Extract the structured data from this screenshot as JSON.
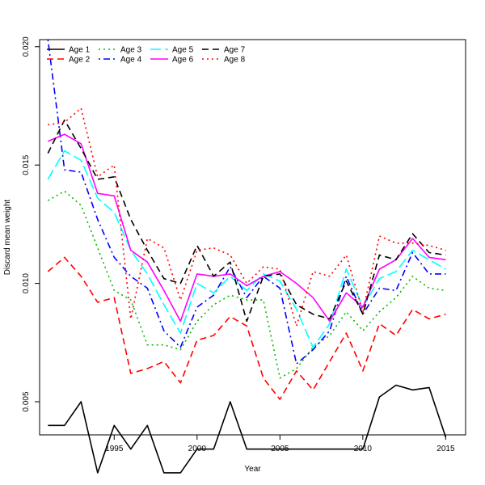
{
  "chart_data": {
    "type": "line",
    "title": "",
    "xlabel": "Year",
    "ylabel": "Discard mean weight",
    "xlim": [
      1990.5,
      2016.2
    ],
    "ylim": [
      0.0036,
      0.0203
    ],
    "x_ticks": [
      1995,
      2000,
      2005,
      2010,
      2015
    ],
    "x_tick_labels": [
      "1995",
      "2000",
      "2005",
      "2010",
      "2015"
    ],
    "y_ticks": [
      0.005,
      0.01,
      0.015,
      0.02
    ],
    "y_tick_labels": [
      "0.005",
      "0.010",
      "0.015",
      "0.020"
    ],
    "grid": false,
    "legend_position": "top-left",
    "x": [
      1991,
      1992,
      1993,
      1994,
      1995,
      1996,
      1997,
      1998,
      1999,
      2000,
      2001,
      2002,
      2003,
      2004,
      2005,
      2006,
      2007,
      2008,
      2009,
      2010,
      2011,
      2012,
      2013,
      2014,
      2015
    ],
    "series": [
      {
        "name": "Age 1",
        "color": "#000000",
        "dash": "solid",
        "values": [
          0.004,
          0.004,
          0.005,
          0.002,
          0.004,
          0.003,
          0.004,
          0.002,
          0.002,
          0.003,
          0.003,
          0.005,
          0.003,
          0.003,
          0.003,
          0.003,
          0.003,
          0.003,
          0.003,
          0.003,
          0.0052,
          0.0057,
          0.0055,
          0.0056,
          0.0035
        ]
      },
      {
        "name": "Age 2",
        "color": "#ff0000",
        "dash": "dashed",
        "values": [
          0.0105,
          0.0111,
          0.0103,
          0.0092,
          0.0094,
          0.0062,
          0.0064,
          0.0067,
          0.0058,
          0.0076,
          0.0078,
          0.0086,
          0.0082,
          0.006,
          0.0051,
          0.0063,
          0.0055,
          0.0067,
          0.0079,
          0.0063,
          0.0083,
          0.0078,
          0.0089,
          0.0085,
          0.0087
        ]
      },
      {
        "name": "Age 3",
        "color": "#00bb00",
        "dash": "dotted",
        "values": [
          0.0135,
          0.0139,
          0.0133,
          0.0115,
          0.0097,
          0.0093,
          0.0074,
          0.0074,
          0.0072,
          0.0084,
          0.0091,
          0.0095,
          0.0093,
          0.0093,
          0.006,
          0.0064,
          0.0073,
          0.0078,
          0.0088,
          0.008,
          0.0088,
          0.0094,
          0.0103,
          0.0098,
          0.0097
        ]
      },
      {
        "name": "Age 4",
        "color": "#0000ff",
        "dash": "dotdash",
        "values": [
          0.0203,
          0.0148,
          0.0147,
          0.0127,
          0.0111,
          0.0103,
          0.0098,
          0.008,
          0.0073,
          0.009,
          0.0095,
          0.0107,
          0.0094,
          0.0103,
          0.0098,
          0.0066,
          0.0072,
          0.008,
          0.0103,
          0.0087,
          0.0098,
          0.0097,
          0.0113,
          0.0104,
          0.0104
        ]
      },
      {
        "name": "Age 5",
        "color": "#00ffff",
        "dash": "longdash",
        "values": [
          0.0144,
          0.0156,
          0.0152,
          0.0136,
          0.013,
          0.0114,
          0.0104,
          0.0091,
          0.0079,
          0.01,
          0.0096,
          0.0103,
          0.0097,
          0.0104,
          0.0101,
          0.0089,
          0.0073,
          0.0083,
          0.0106,
          0.009,
          0.0102,
          0.0105,
          0.0114,
          0.011,
          0.0106
        ]
      },
      {
        "name": "Age 6",
        "color": "#ff00ff",
        "dash": "solid",
        "values": [
          0.016,
          0.0163,
          0.0159,
          0.0138,
          0.0137,
          0.0114,
          0.0109,
          0.0097,
          0.0084,
          0.0104,
          0.0103,
          0.0104,
          0.0099,
          0.0103,
          0.0105,
          0.01,
          0.0094,
          0.0084,
          0.0096,
          0.009,
          0.0106,
          0.011,
          0.0119,
          0.0111,
          0.011
        ]
      },
      {
        "name": "Age 7",
        "color": "#000000",
        "dash": "dashed",
        "values": [
          0.0155,
          0.0169,
          0.0157,
          0.0144,
          0.0145,
          0.0127,
          0.0114,
          0.0102,
          0.01,
          0.0116,
          0.0103,
          0.0109,
          0.0084,
          0.0103,
          0.0104,
          0.0091,
          0.0087,
          0.0085,
          0.0101,
          0.0087,
          0.0112,
          0.011,
          0.0121,
          0.0113,
          0.0112
        ]
      },
      {
        "name": "Age 8",
        "color": "#ff0000",
        "dash": "dotted",
        "values": [
          0.0167,
          0.0168,
          0.0174,
          0.0145,
          0.015,
          0.0085,
          0.0119,
          0.0115,
          0.0093,
          0.0114,
          0.0115,
          0.0112,
          0.01,
          0.0107,
          0.0106,
          0.0082,
          0.0105,
          0.0103,
          0.0112,
          0.0088,
          0.012,
          0.0117,
          0.0117,
          0.0116,
          0.0114
        ]
      }
    ]
  }
}
